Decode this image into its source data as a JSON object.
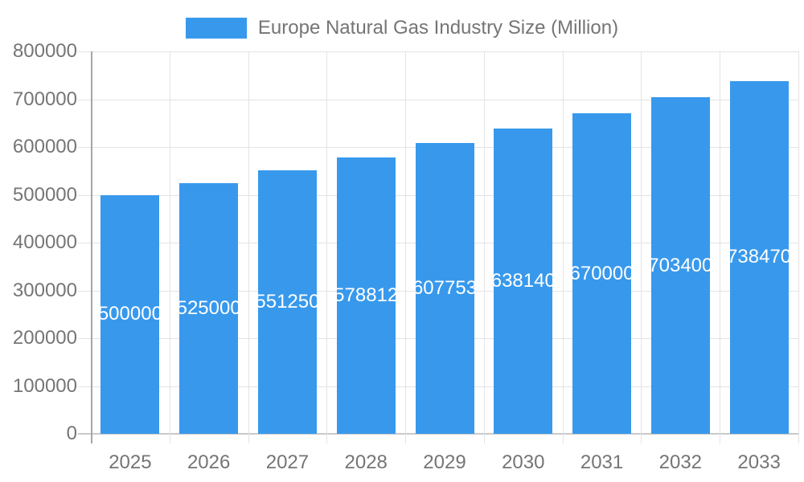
{
  "legend": {
    "label": "Europe Natural Gas Industry Size (Million)",
    "swatch_color": "#3899EC"
  },
  "colors": {
    "bar": "#3899EC",
    "bar_label_text": "#ffffff",
    "axis_text": "#757575",
    "grid_line": "#e3e3e3",
    "axis_line": "#a6a6a6"
  },
  "chart_data": {
    "type": "bar",
    "title": "Europe Natural Gas Industry Size (Million)",
    "categories": [
      "2025",
      "2026",
      "2027",
      "2028",
      "2029",
      "2030",
      "2031",
      "2032",
      "2033"
    ],
    "values": [
      500000,
      525000,
      551250,
      578812,
      607753,
      638140,
      670000,
      703400,
      738470
    ],
    "bar_value_labels": [
      "500000",
      "525000",
      "551250",
      "578812",
      "607753",
      "638140",
      "670000",
      "703400",
      "738470"
    ],
    "xlabel": "",
    "ylabel": "",
    "ylim": [
      0,
      800000
    ],
    "yticks": [
      0,
      100000,
      200000,
      300000,
      400000,
      500000,
      600000,
      700000,
      800000
    ],
    "ytick_labels": [
      "0",
      "100000",
      "200000",
      "300000",
      "400000",
      "500000",
      "600000",
      "700000",
      "800000"
    ],
    "grid": true,
    "legend_position": "top",
    "bar_labels_visible": true
  }
}
